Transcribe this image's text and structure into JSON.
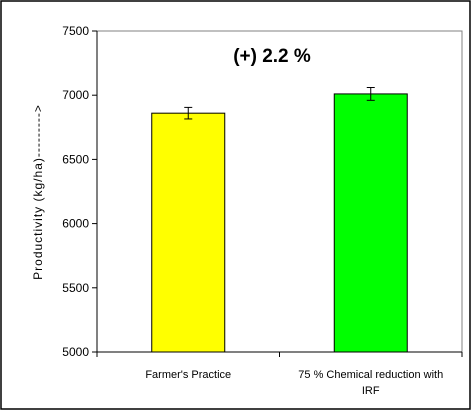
{
  "chart_data": {
    "type": "bar",
    "categories": [
      "Farmer's Practice",
      "75 % Chemical reduction with IRF"
    ],
    "category_label_lines": [
      [
        "Farmer's Practice"
      ],
      [
        "75 % Chemical reduction with",
        "IRF"
      ]
    ],
    "values": [
      6860,
      7010
    ],
    "error": [
      45,
      50
    ],
    "bar_colors": [
      "#FFFF00",
      "#00FF00"
    ],
    "ylabel": "Productivity (kg/ha)--------->",
    "ylim": [
      5000,
      7500
    ],
    "yticks": [
      5000,
      5500,
      6000,
      6500,
      7000,
      7500
    ],
    "annotation": "(+) 2.2 %",
    "grid": false,
    "legend": "none"
  }
}
